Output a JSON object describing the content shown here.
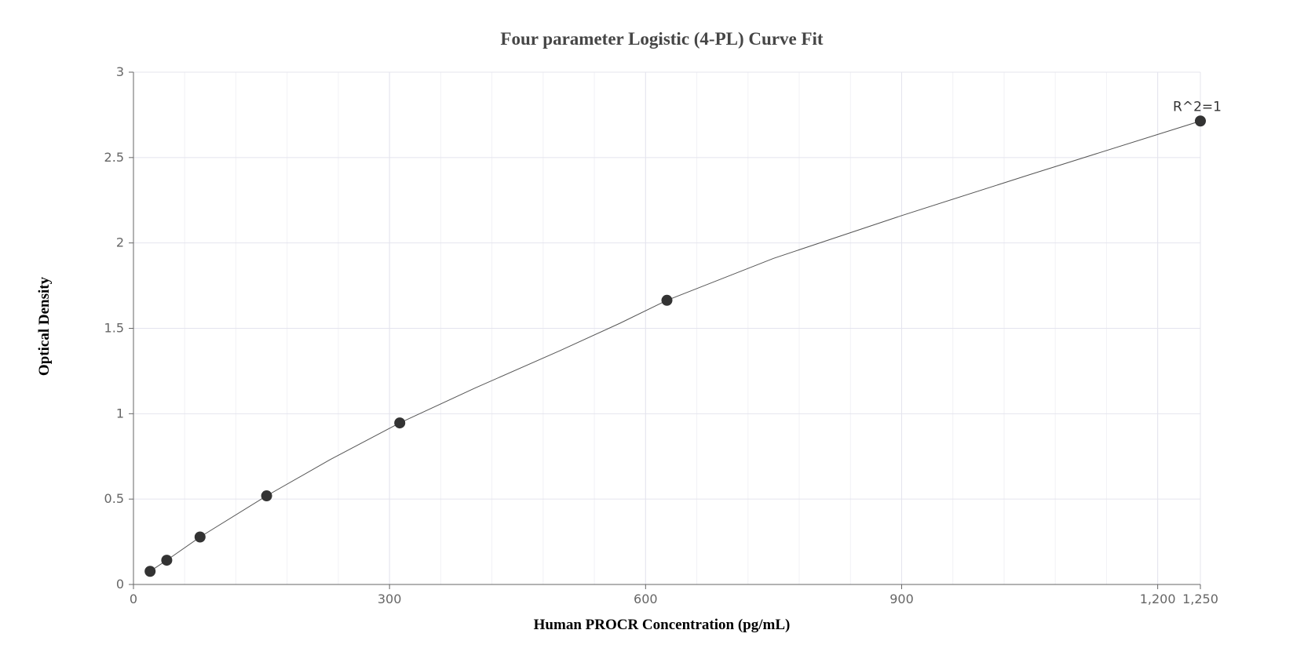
{
  "chart_data": {
    "type": "scatter",
    "title": "Four parameter Logistic (4-PL) Curve Fit",
    "xlabel": "Human PROCR Concentration (pg/mL)",
    "ylabel": "Optical Density",
    "xlim": [
      0,
      1250
    ],
    "ylim": [
      0,
      3
    ],
    "x_ticks": [
      0,
      300,
      600,
      900,
      1200,
      1250
    ],
    "x_tick_labels": [
      "0",
      "300",
      "600",
      "900",
      "1,200",
      "1,250"
    ],
    "y_ticks": [
      0,
      0.5,
      1,
      1.5,
      2,
      2.5,
      3
    ],
    "y_tick_labels": [
      "0",
      "0.5",
      "1",
      "1.5",
      "2",
      "2.5",
      "3"
    ],
    "x_minor_step": 60,
    "y_minor_step": 0.5,
    "grid": true,
    "series": [
      {
        "points": [
          {
            "x": 19.5,
            "y": 0.077
          },
          {
            "x": 39,
            "y": 0.142
          },
          {
            "x": 78,
            "y": 0.278
          },
          {
            "x": 156,
            "y": 0.519
          },
          {
            "x": 312,
            "y": 0.946
          },
          {
            "x": 625,
            "y": 1.664
          },
          {
            "x": 1250,
            "y": 2.714
          }
        ]
      }
    ],
    "fit_curve": {
      "model": "4PL",
      "points": [
        {
          "x": 19.5,
          "y": 0.077
        },
        {
          "x": 39,
          "y": 0.142
        },
        {
          "x": 78,
          "y": 0.278
        },
        {
          "x": 156,
          "y": 0.519
        },
        {
          "x": 230,
          "y": 0.73
        },
        {
          "x": 312,
          "y": 0.946
        },
        {
          "x": 400,
          "y": 1.15
        },
        {
          "x": 500,
          "y": 1.37
        },
        {
          "x": 570,
          "y": 1.53
        },
        {
          "x": 625,
          "y": 1.664
        },
        {
          "x": 750,
          "y": 1.91
        },
        {
          "x": 900,
          "y": 2.16
        },
        {
          "x": 1050,
          "y": 2.4
        },
        {
          "x": 1250,
          "y": 2.714
        }
      ]
    },
    "annotation": {
      "text": "R^2=1",
      "x": 1250,
      "y": 2.714
    },
    "colors": {
      "marker": "#333333",
      "line": "#555555",
      "grid": "#e4e4ee",
      "axis": "#666666"
    }
  }
}
